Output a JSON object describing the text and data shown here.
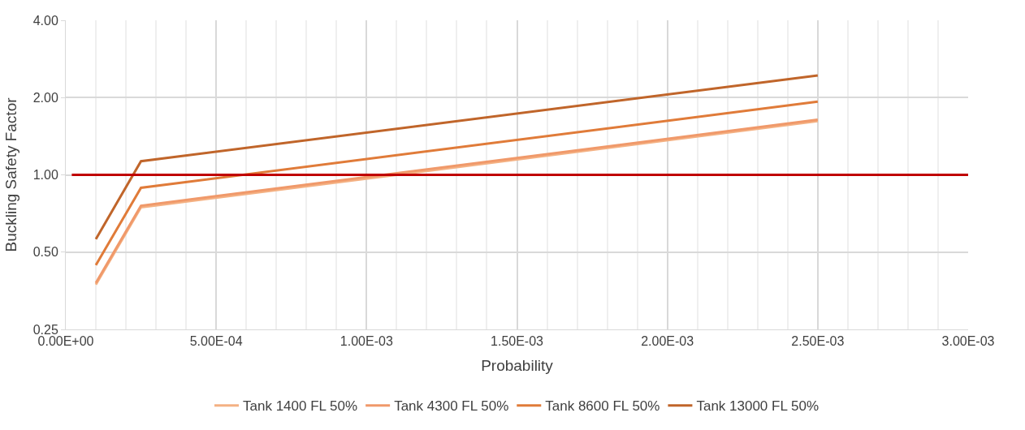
{
  "chart_data": {
    "type": "line",
    "xlabel": "Probability",
    "ylabel": "Buckling Safety Factor",
    "log": "y",
    "xlim": [
      0,
      0.003
    ],
    "xticks": [
      {
        "value": 0,
        "label": "0.00E+00"
      },
      {
        "value": 0.0005,
        "label": "5.00E-04"
      },
      {
        "value": 0.001,
        "label": "1.00E-03"
      },
      {
        "value": 0.0015,
        "label": "1.50E-03"
      },
      {
        "value": 0.002,
        "label": "2.00E-03"
      },
      {
        "value": 0.0025,
        "label": "2.50E-03"
      },
      {
        "value": 0.003,
        "label": "3.00E-03"
      }
    ],
    "ylim": [
      0.25,
      4
    ],
    "yticks": [
      {
        "value": 0.25,
        "label": "0.25"
      },
      {
        "value": 0.5,
        "label": "0.50"
      },
      {
        "value": 1,
        "label": "1.00"
      },
      {
        "value": 2,
        "label": "2.00"
      },
      {
        "value": 4,
        "label": "4.00"
      }
    ],
    "x": [
      0.0001,
      0.00025,
      0.0025
    ],
    "series": [
      {
        "name": "Tank 1400 FL 50%",
        "color": "#f4b183",
        "values": [
          0.374,
          0.747,
          1.62
        ]
      },
      {
        "name": "Tank 4300 FL 50%",
        "color": "#f0996a",
        "values": [
          0.379,
          0.758,
          1.64
        ]
      },
      {
        "name": "Tank 8600 FL 50%",
        "color": "#e07b39",
        "values": [
          0.445,
          0.89,
          1.93
        ]
      },
      {
        "name": "Tank 13000 FL 50%",
        "color": "#c0652a",
        "values": [
          0.562,
          1.13,
          2.44
        ]
      }
    ],
    "ref_lines": [
      {
        "axis": "y",
        "value": 1,
        "label": null,
        "color": "#c00000"
      }
    ],
    "grid": true,
    "legend": "bottom",
    "marker": "none",
    "line_style": "solid"
  }
}
